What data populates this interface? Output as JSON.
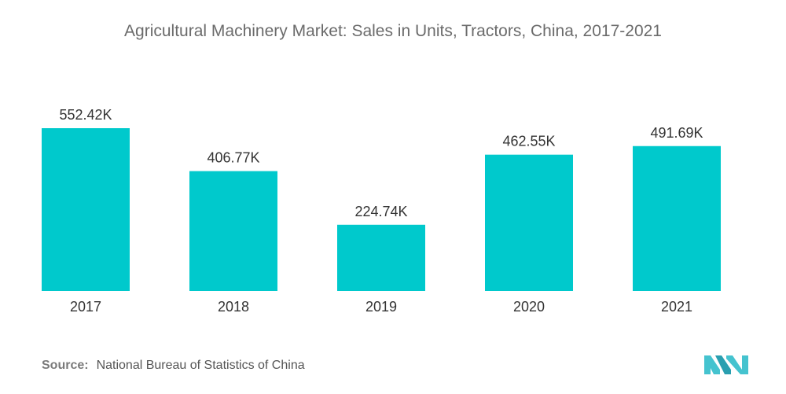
{
  "chart_data": {
    "type": "bar",
    "title": "Agricultural Machinery Market: Sales in Units, Tractors, China, 2017-2021",
    "categories": [
      "2017",
      "2018",
      "2019",
      "2020",
      "2021"
    ],
    "values": [
      552.42,
      406.77,
      224.74,
      462.55,
      491.69
    ],
    "value_labels": [
      "552.42K",
      "406.77K",
      "224.74K",
      "462.55K",
      "491.69K"
    ],
    "unit": "K",
    "xlabel": "",
    "ylabel": "",
    "ylim": [
      0,
      552.42
    ],
    "grid": false,
    "bar_color": "#00c9cc"
  },
  "source": {
    "label": "Source:",
    "text": "National Bureau of Statistics of China"
  },
  "colors": {
    "bar": "#00c9cc",
    "title": "#6b6b6b",
    "text": "#333333",
    "logo": "#45c3cf"
  },
  "logo_icon": "mordor-intelligence-logo"
}
